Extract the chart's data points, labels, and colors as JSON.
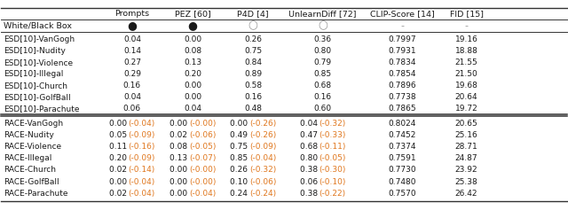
{
  "columns": [
    "",
    "Prompts",
    "PEZ [60]",
    "P4D [4]",
    "UnlearnDiff [72]",
    "CLIP-Score [14]",
    "FID [15]"
  ],
  "header_row": [
    "White/Black Box",
    "●",
    "●",
    "○",
    "○",
    "-",
    "-"
  ],
  "esd_rows": [
    [
      "ESD[10]-VanGogh",
      "0.04",
      "0.00",
      "0.26",
      "0.36",
      "0.7997",
      "19.16"
    ],
    [
      "ESD[10]-Nudity",
      "0.14",
      "0.08",
      "0.75",
      "0.80",
      "0.7931",
      "18.88"
    ],
    [
      "ESD[10]-Violence",
      "0.27",
      "0.13",
      "0.84",
      "0.79",
      "0.7834",
      "21.55"
    ],
    [
      "ESD[10]-Illegal",
      "0.29",
      "0.20",
      "0.89",
      "0.85",
      "0.7854",
      "21.50"
    ],
    [
      "ESD[10]-Church",
      "0.16",
      "0.00",
      "0.58",
      "0.68",
      "0.7896",
      "19.68"
    ],
    [
      "ESD[10]-GolfBall",
      "0.04",
      "0.00",
      "0.16",
      "0.16",
      "0.7738",
      "20.64"
    ],
    [
      "ESD[10]-Parachute",
      "0.06",
      "0.04",
      "0.48",
      "0.60",
      "0.7865",
      "19.72"
    ]
  ],
  "race_rows": [
    [
      "RACE-VanGogh",
      "0.00",
      "(-0.04)",
      "0.00",
      "(-0.00)",
      "0.00",
      "(-0.26)",
      "0.04",
      "(-0.32)",
      "0.8024",
      "20.65"
    ],
    [
      "RACE-Nudity",
      "0.05",
      "(-0.09)",
      "0.02",
      "(-0.06)",
      "0.49",
      "(-0.26)",
      "0.47",
      "(-0.33)",
      "0.7452",
      "25.16"
    ],
    [
      "RACE-Violence",
      "0.11",
      "(-0.16)",
      "0.08",
      "(-0.05)",
      "0.75",
      "(-0.09)",
      "0.68",
      "(-0.11)",
      "0.7374",
      "28.71"
    ],
    [
      "RACE-Illegal",
      "0.20",
      "(-0.09)",
      "0.13",
      "(-0.07)",
      "0.85",
      "(-0.04)",
      "0.80",
      "(-0.05)",
      "0.7591",
      "24.87"
    ],
    [
      "RACE-Church",
      "0.02",
      "(-0.14)",
      "0.00",
      "(-0.00)",
      "0.26",
      "(-0.32)",
      "0.38",
      "(-0.30)",
      "0.7730",
      "23.92"
    ],
    [
      "RACE-GolfBall",
      "0.00",
      "(-0.04)",
      "0.00",
      "(-0.00)",
      "0.10",
      "(-0.06)",
      "0.06",
      "(-0.10)",
      "0.7480",
      "25.38"
    ],
    [
      "RACE-Parachute",
      "0.02",
      "(-0.04)",
      "0.00",
      "(-0.04)",
      "0.24",
      "(-0.24)",
      "0.38",
      "(-0.22)",
      "0.7570",
      "26.42"
    ]
  ],
  "bg_color": "white",
  "orange_color": "#e07820",
  "black_color": "#1a1a1a",
  "gray_color": "#999999",
  "figsize": [
    6.4,
    2.46
  ],
  "dpi": 100
}
